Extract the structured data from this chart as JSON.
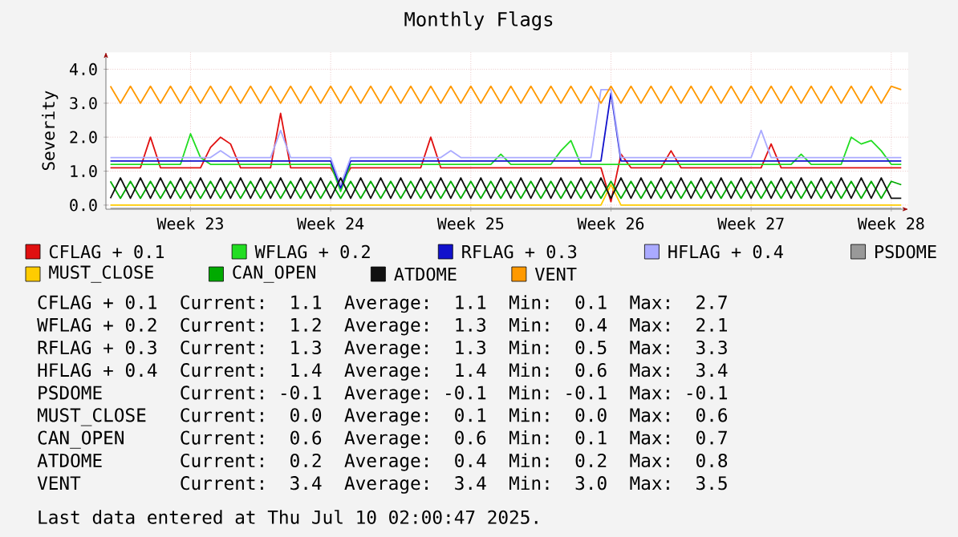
{
  "chart_data": {
    "type": "line",
    "title": "Monthly Flags",
    "ylabel": "Severity",
    "ylim": [
      -0.12,
      4.5
    ],
    "yticks": [
      {
        "value": 0,
        "label": "0.0"
      },
      {
        "value": 1,
        "label": "1.0"
      },
      {
        "value": 2,
        "label": "2.0"
      },
      {
        "value": 3,
        "label": "3.0"
      },
      {
        "value": 4,
        "label": "4.0"
      }
    ],
    "grid": true,
    "legend": "bottom",
    "categories": [
      null,
      null,
      null,
      null,
      null,
      null,
      null,
      null,
      "Week 23",
      null,
      null,
      null,
      null,
      null,
      null,
      null,
      null,
      null,
      null,
      null,
      null,
      null,
      "Week 24",
      null,
      null,
      null,
      null,
      null,
      null,
      null,
      null,
      null,
      null,
      null,
      null,
      null,
      "Week 25",
      null,
      null,
      null,
      null,
      null,
      null,
      null,
      null,
      null,
      null,
      null,
      null,
      null,
      "Week 26",
      null,
      null,
      null,
      null,
      null,
      null,
      null,
      null,
      null,
      null,
      null,
      null,
      null,
      "Week 27",
      null,
      null,
      null,
      null,
      null,
      null,
      null,
      null,
      null,
      null,
      null,
      null,
      null,
      "Week 28",
      null
    ],
    "series": [
      {
        "name": "CFLAG + 0.1",
        "color": "#e01010",
        "values": [
          1.1,
          1.1,
          1.1,
          1.1,
          2.0,
          1.1,
          1.1,
          1.1,
          1.1,
          1.1,
          1.7,
          2.0,
          1.8,
          1.1,
          1.1,
          1.1,
          1.1,
          2.7,
          1.1,
          1.1,
          1.1,
          1.1,
          1.1,
          0.6,
          1.1,
          1.1,
          1.1,
          1.1,
          1.1,
          1.1,
          1.1,
          1.1,
          2.0,
          1.1,
          1.1,
          1.1,
          1.1,
          1.1,
          1.1,
          1.1,
          1.1,
          1.1,
          1.1,
          1.1,
          1.1,
          1.1,
          1.1,
          1.1,
          1.1,
          1.1,
          0.1,
          1.5,
          1.1,
          1.1,
          1.1,
          1.1,
          1.6,
          1.1,
          1.1,
          1.1,
          1.1,
          1.1,
          1.1,
          1.1,
          1.1,
          1.1,
          1.8,
          1.1,
          1.1,
          1.1,
          1.1,
          1.1,
          1.1,
          1.1,
          1.1,
          1.1,
          1.1,
          1.1,
          1.1,
          1.1
        ]
      },
      {
        "name": "WFLAG + 0.2",
        "color": "#22dd22",
        "values": [
          1.2,
          1.2,
          1.2,
          1.2,
          1.2,
          1.2,
          1.2,
          1.2,
          2.1,
          1.4,
          1.2,
          1.2,
          1.2,
          1.2,
          1.2,
          1.2,
          1.2,
          1.2,
          1.2,
          1.2,
          1.2,
          1.2,
          1.2,
          0.4,
          1.2,
          1.2,
          1.2,
          1.2,
          1.2,
          1.2,
          1.2,
          1.2,
          1.2,
          1.2,
          1.2,
          1.2,
          1.2,
          1.2,
          1.2,
          1.5,
          1.2,
          1.2,
          1.2,
          1.2,
          1.2,
          1.6,
          1.9,
          1.2,
          1.2,
          1.2,
          1.2,
          1.2,
          1.2,
          1.2,
          1.2,
          1.2,
          1.2,
          1.2,
          1.2,
          1.2,
          1.2,
          1.2,
          1.2,
          1.2,
          1.2,
          1.2,
          1.2,
          1.2,
          1.2,
          1.5,
          1.2,
          1.2,
          1.2,
          1.2,
          2.0,
          1.8,
          1.9,
          1.6,
          1.2,
          1.2
        ]
      },
      {
        "name": "RFLAG + 0.3",
        "color": "#1111cc",
        "values": [
          1.3,
          1.3,
          1.3,
          1.3,
          1.3,
          1.3,
          1.3,
          1.3,
          1.3,
          1.3,
          1.3,
          1.3,
          1.3,
          1.3,
          1.3,
          1.3,
          1.3,
          1.3,
          1.3,
          1.3,
          1.3,
          1.3,
          1.3,
          0.5,
          1.3,
          1.3,
          1.3,
          1.3,
          1.3,
          1.3,
          1.3,
          1.3,
          1.3,
          1.3,
          1.3,
          1.3,
          1.3,
          1.3,
          1.3,
          1.3,
          1.3,
          1.3,
          1.3,
          1.3,
          1.3,
          1.3,
          1.3,
          1.3,
          1.3,
          1.3,
          3.3,
          1.3,
          1.3,
          1.3,
          1.3,
          1.3,
          1.3,
          1.3,
          1.3,
          1.3,
          1.3,
          1.3,
          1.3,
          1.3,
          1.3,
          1.3,
          1.3,
          1.3,
          1.3,
          1.3,
          1.3,
          1.3,
          1.3,
          1.3,
          1.3,
          1.3,
          1.3,
          1.3,
          1.3,
          1.3
        ]
      },
      {
        "name": "HFLAG + 0.4",
        "color": "#aaaaff",
        "values": [
          1.4,
          1.4,
          1.4,
          1.4,
          1.4,
          1.4,
          1.4,
          1.4,
          1.4,
          1.4,
          1.4,
          1.6,
          1.4,
          1.4,
          1.4,
          1.4,
          1.4,
          2.2,
          1.4,
          1.4,
          1.4,
          1.4,
          1.4,
          0.6,
          1.4,
          1.4,
          1.4,
          1.4,
          1.4,
          1.4,
          1.4,
          1.4,
          1.4,
          1.4,
          1.6,
          1.4,
          1.4,
          1.4,
          1.4,
          1.4,
          1.4,
          1.4,
          1.4,
          1.4,
          1.4,
          1.4,
          1.4,
          1.4,
          1.4,
          3.4,
          3.4,
          1.4,
          1.4,
          1.4,
          1.4,
          1.4,
          1.4,
          1.4,
          1.4,
          1.4,
          1.4,
          1.4,
          1.4,
          1.4,
          1.4,
          2.2,
          1.4,
          1.4,
          1.4,
          1.4,
          1.4,
          1.4,
          1.4,
          1.4,
          1.4,
          1.4,
          1.4,
          1.4,
          1.4,
          1.4
        ]
      },
      {
        "name": "PSDOME",
        "color": "#999999",
        "values": [
          -0.1,
          -0.1,
          -0.1,
          -0.1,
          -0.1,
          -0.1,
          -0.1,
          -0.1,
          -0.1,
          -0.1,
          -0.1,
          -0.1,
          -0.1,
          -0.1,
          -0.1,
          -0.1,
          -0.1,
          -0.1,
          -0.1,
          -0.1,
          -0.1,
          -0.1,
          -0.1,
          -0.1,
          -0.1,
          -0.1,
          -0.1,
          -0.1,
          -0.1,
          -0.1,
          -0.1,
          -0.1,
          -0.1,
          -0.1,
          -0.1,
          -0.1,
          -0.1,
          -0.1,
          -0.1,
          -0.1,
          -0.1,
          -0.1,
          -0.1,
          -0.1,
          -0.1,
          -0.1,
          -0.1,
          -0.1,
          -0.1,
          -0.1,
          -0.1,
          -0.1,
          -0.1,
          -0.1,
          -0.1,
          -0.1,
          -0.1,
          -0.1,
          -0.1,
          -0.1,
          -0.1,
          -0.1,
          -0.1,
          -0.1,
          -0.1,
          -0.1,
          -0.1,
          -0.1,
          -0.1,
          -0.1,
          -0.1,
          -0.1,
          -0.1,
          -0.1,
          -0.1,
          -0.1,
          -0.1,
          -0.1,
          -0.1,
          -0.1
        ]
      },
      {
        "name": "MUST_CLOSE",
        "color": "#ffcc00",
        "values": [
          0.0,
          0.0,
          0.0,
          0.0,
          0.0,
          0.0,
          0.0,
          0.0,
          0.0,
          0.0,
          0.0,
          0.0,
          0.0,
          0.0,
          0.0,
          0.0,
          0.0,
          0.0,
          0.0,
          0.0,
          0.0,
          0.0,
          0.0,
          0.0,
          0.0,
          0.0,
          0.0,
          0.0,
          0.0,
          0.0,
          0.0,
          0.0,
          0.0,
          0.0,
          0.0,
          0.0,
          0.0,
          0.0,
          0.0,
          0.0,
          0.0,
          0.0,
          0.0,
          0.0,
          0.0,
          0.0,
          0.0,
          0.0,
          0.0,
          0.0,
          0.6,
          0.0,
          0.0,
          0.0,
          0.0,
          0.0,
          0.0,
          0.0,
          0.0,
          0.0,
          0.0,
          0.0,
          0.0,
          0.0,
          0.0,
          0.0,
          0.0,
          0.0,
          0.0,
          0.0,
          0.0,
          0.0,
          0.0,
          0.0,
          0.0,
          0.0,
          0.0,
          0.0,
          0.0,
          0.0
        ]
      },
      {
        "name": "CAN_OPEN",
        "color": "#00aa00",
        "values": [
          0.7,
          0.2,
          0.7,
          0.2,
          0.7,
          0.2,
          0.7,
          0.2,
          0.7,
          0.2,
          0.7,
          0.2,
          0.7,
          0.2,
          0.7,
          0.2,
          0.7,
          0.2,
          0.7,
          0.2,
          0.7,
          0.2,
          0.7,
          0.2,
          0.7,
          0.2,
          0.7,
          0.2,
          0.7,
          0.2,
          0.7,
          0.2,
          0.7,
          0.2,
          0.7,
          0.2,
          0.7,
          0.2,
          0.7,
          0.2,
          0.7,
          0.2,
          0.7,
          0.2,
          0.7,
          0.2,
          0.7,
          0.2,
          0.7,
          0.2,
          0.7,
          0.2,
          0.7,
          0.2,
          0.7,
          0.2,
          0.7,
          0.2,
          0.7,
          0.2,
          0.7,
          0.2,
          0.7,
          0.2,
          0.7,
          0.2,
          0.7,
          0.2,
          0.7,
          0.2,
          0.7,
          0.2,
          0.7,
          0.2,
          0.7,
          0.2,
          0.7,
          0.2,
          0.7,
          0.6
        ]
      },
      {
        "name": "ATDOME",
        "color": "#111111",
        "values": [
          0.2,
          0.8,
          0.2,
          0.8,
          0.2,
          0.8,
          0.2,
          0.8,
          0.2,
          0.8,
          0.2,
          0.8,
          0.2,
          0.8,
          0.2,
          0.8,
          0.2,
          0.8,
          0.2,
          0.8,
          0.2,
          0.8,
          0.2,
          0.8,
          0.2,
          0.8,
          0.2,
          0.8,
          0.2,
          0.8,
          0.2,
          0.8,
          0.2,
          0.8,
          0.2,
          0.8,
          0.2,
          0.8,
          0.2,
          0.8,
          0.2,
          0.8,
          0.2,
          0.8,
          0.2,
          0.8,
          0.2,
          0.8,
          0.2,
          0.8,
          0.2,
          0.8,
          0.2,
          0.8,
          0.2,
          0.8,
          0.2,
          0.8,
          0.2,
          0.8,
          0.2,
          0.8,
          0.2,
          0.8,
          0.2,
          0.8,
          0.2,
          0.8,
          0.2,
          0.8,
          0.2,
          0.8,
          0.2,
          0.8,
          0.2,
          0.8,
          0.2,
          0.8,
          0.2,
          0.2
        ]
      },
      {
        "name": "VENT",
        "color": "#ff9900",
        "values": [
          3.5,
          3.0,
          3.5,
          3.0,
          3.5,
          3.0,
          3.5,
          3.0,
          3.5,
          3.0,
          3.5,
          3.0,
          3.5,
          3.0,
          3.5,
          3.0,
          3.5,
          3.0,
          3.5,
          3.0,
          3.5,
          3.0,
          3.5,
          3.0,
          3.5,
          3.0,
          3.5,
          3.0,
          3.5,
          3.0,
          3.5,
          3.0,
          3.5,
          3.0,
          3.5,
          3.0,
          3.5,
          3.0,
          3.5,
          3.0,
          3.5,
          3.0,
          3.5,
          3.0,
          3.5,
          3.0,
          3.5,
          3.0,
          3.5,
          3.0,
          3.5,
          3.0,
          3.5,
          3.0,
          3.5,
          3.0,
          3.5,
          3.0,
          3.5,
          3.0,
          3.5,
          3.0,
          3.5,
          3.0,
          3.5,
          3.0,
          3.5,
          3.0,
          3.5,
          3.0,
          3.5,
          3.0,
          3.5,
          3.0,
          3.5,
          3.0,
          3.5,
          3.0,
          3.5,
          3.4
        ]
      }
    ],
    "annotations": [
      "CFLAG + 0.1  Current:  1.1  Average:  1.1  Min:  0.1  Max:  2.7",
      "WFLAG + 0.2  Current:  1.2  Average:  1.3  Min:  0.4  Max:  2.1",
      "RFLAG + 0.3  Current:  1.3  Average:  1.3  Min:  0.5  Max:  3.3",
      "HFLAG + 0.4  Current:  1.4  Average:  1.4  Min:  0.6  Max:  3.4",
      "PSDOME       Current: -0.1  Average: -0.1  Min: -0.1  Max: -0.1",
      "MUST_CLOSE   Current:  0.0  Average:  0.1  Min:  0.0  Max:  0.6",
      "CAN_OPEN     Current:  0.6  Average:  0.6  Min:  0.1  Max:  0.7",
      "ATDOME       Current:  0.2  Average:  0.4  Min:  0.2  Max:  0.8",
      "VENT         Current:  3.4  Average:  3.4  Min:  3.0  Max:  3.5",
      "Last data entered at Thu Jul 10 02:00:47 2025."
    ]
  }
}
